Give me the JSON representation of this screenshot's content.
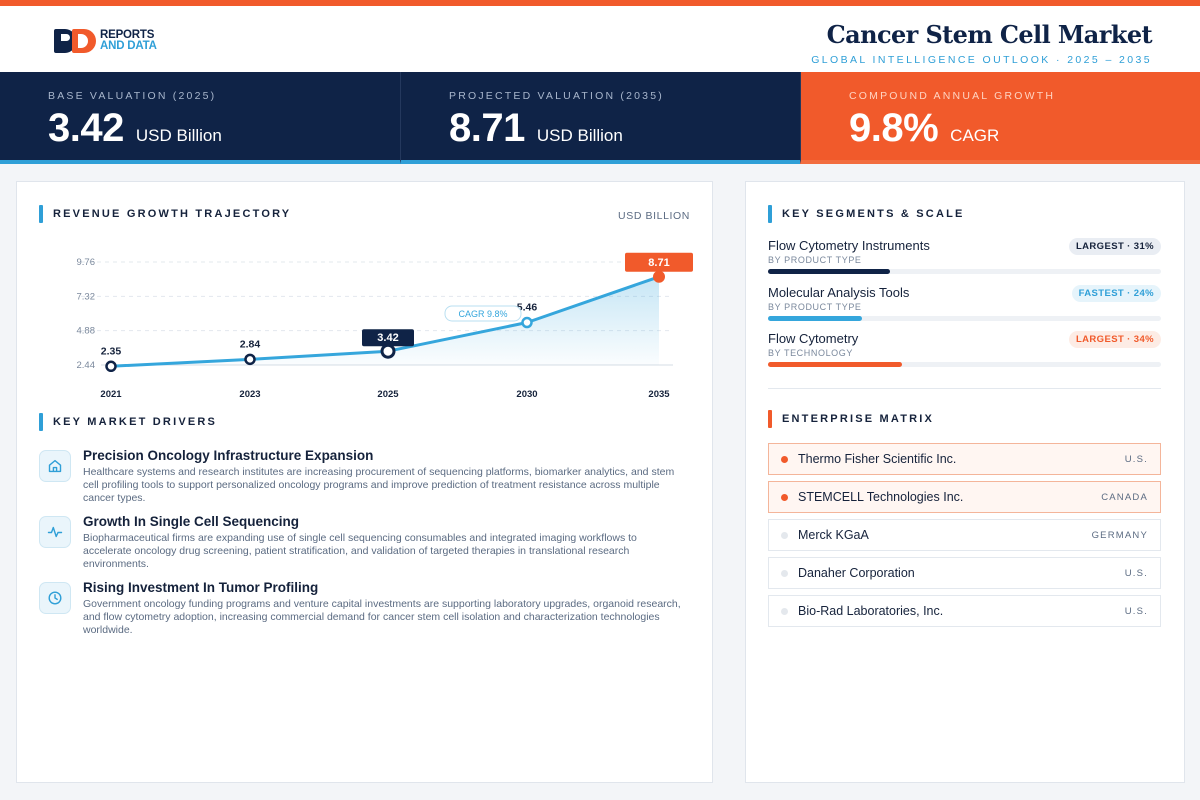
{
  "brand": {
    "line1": "REPORTS",
    "line2": "AND DATA"
  },
  "header": {
    "title": "Cancer Stem Cell Market",
    "subtitle": "GLOBAL INTELLIGENCE OUTLOOK  ·  2025 – 2035"
  },
  "kpis": [
    {
      "label": "BASE VALUATION (2025)",
      "value": "3.42",
      "unit": "USD Billion"
    },
    {
      "label": "PROJECTED VALUATION (2035)",
      "value": "8.71",
      "unit": "USD Billion"
    },
    {
      "label": "COMPOUND ANNUAL GROWTH",
      "value": "9.8%",
      "unit": "CAGR"
    }
  ],
  "trajectory": {
    "title": "REVENUE GROWTH TRAJECTORY",
    "unit": "USD BILLION"
  },
  "chart_data": {
    "type": "area",
    "categories": [
      "2021",
      "2023",
      "2025",
      "2030",
      "2035"
    ],
    "values": [
      2.35,
      2.84,
      3.42,
      5.46,
      8.71
    ],
    "value_labels": [
      "2.35",
      "2.84",
      "3.42",
      "5.46",
      "8.71"
    ],
    "y_ticks": [
      2.44,
      4.88,
      7.32,
      9.76
    ],
    "y_tick_labels": [
      "2.44",
      "4.88",
      "7.32",
      "9.76"
    ],
    "annotation": "CAGR 9.8%",
    "highlight_index": 2,
    "end_index": 4,
    "grid": true,
    "colors": {
      "line": "#35a6dc",
      "end": "#f15a2b",
      "highlight": "#0f2347"
    }
  },
  "drivers": {
    "title": "KEY MARKET DRIVERS",
    "items": [
      {
        "icon": "home-icon",
        "title": "Precision Oncology Infrastructure Expansion",
        "desc": "Healthcare systems and research institutes are increasing procurement of sequencing platforms, biomarker analytics, and stem cell profiling tools to support personalized oncology programs and improve prediction of treatment resistance across multiple cancer types."
      },
      {
        "icon": "activity-icon",
        "title": "Growth In Single Cell Sequencing",
        "desc": "Biopharmaceutical firms are expanding use of single cell sequencing consumables and integrated imaging workflows to accelerate oncology drug screening, patient stratification, and validation of targeted therapies in translational research environments."
      },
      {
        "icon": "clock-icon",
        "title": "Rising Investment In Tumor Profiling",
        "desc": "Government oncology funding programs and venture capital investments are supporting laboratory upgrades, organoid research, and flow cytometry adoption, increasing commercial demand for cancer stem cell isolation and characterization technologies worldwide."
      }
    ]
  },
  "segments": {
    "title": "KEY SEGMENTS & SCALE",
    "items": [
      {
        "name": "Flow Cytometry Instruments",
        "sub": "BY PRODUCT TYPE",
        "badge": "LARGEST · 31%",
        "share": 0.31,
        "color": "#0f2347",
        "badge_bg": "#e9edf3",
        "badge_fg": "#15223b"
      },
      {
        "name": "Molecular Analysis Tools",
        "sub": "BY PRODUCT TYPE",
        "badge": "FASTEST · 24%",
        "share": 0.24,
        "color": "#35a6dc",
        "badge_bg": "#e6f4fb",
        "badge_fg": "#2f9fd7"
      },
      {
        "name": "Flow Cytometry",
        "sub": "BY TECHNOLOGY",
        "badge": "LARGEST · 34%",
        "share": 0.34,
        "color": "#f15a2b",
        "badge_bg": "#fdece5",
        "badge_fg": "#f15a2b"
      }
    ]
  },
  "enterprise": {
    "title": "ENTERPRISE MATRIX",
    "items": [
      {
        "name": "Thermo Fisher Scientific Inc.",
        "country": "U.S.",
        "highlight": true
      },
      {
        "name": "STEMCELL Technologies Inc.",
        "country": "CANADA",
        "highlight": true
      },
      {
        "name": "Merck KGaA",
        "country": "GERMANY",
        "highlight": false
      },
      {
        "name": "Danaher Corporation",
        "country": "U.S.",
        "highlight": false
      },
      {
        "name": "Bio-Rad Laboratories, Inc.",
        "country": "U.S.",
        "highlight": false
      }
    ]
  }
}
